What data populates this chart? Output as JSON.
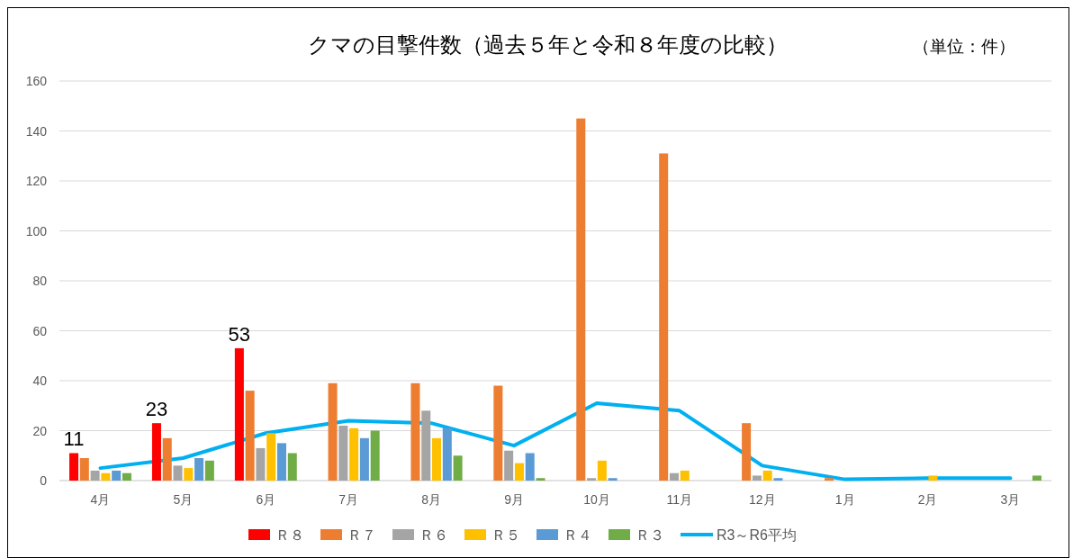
{
  "chart_data": {
    "type": "bar",
    "title": "クマの目撃件数（過去５年と令和８年度の比較）",
    "annotations": [
      "（単位：件）"
    ],
    "categories": [
      "4月",
      "5月",
      "6月",
      "7月",
      "8月",
      "9月",
      "10月",
      "11月",
      "12月",
      "1月",
      "2月",
      "3月"
    ],
    "series": [
      {
        "name": "Ｒ８",
        "color": "#ff0000",
        "values": [
          11,
          23,
          53,
          null,
          null,
          null,
          null,
          null,
          null,
          null,
          null,
          null
        ],
        "value_labels": [
          "11",
          "23",
          "53",
          null,
          null,
          null,
          null,
          null,
          null,
          null,
          null,
          null
        ]
      },
      {
        "name": "Ｒ７",
        "color": "#ed7d31",
        "values": [
          9,
          17,
          36,
          39,
          39,
          38,
          145,
          131,
          23,
          1,
          0,
          0
        ]
      },
      {
        "name": "Ｒ６",
        "color": "#a5a5a5",
        "values": [
          4,
          6,
          13,
          22,
          28,
          12,
          1,
          3,
          2,
          0,
          0,
          0
        ]
      },
      {
        "name": "Ｒ５",
        "color": "#ffc000",
        "values": [
          3,
          5,
          19,
          21,
          17,
          7,
          8,
          4,
          4,
          0,
          2,
          0
        ]
      },
      {
        "name": "Ｒ４",
        "color": "#5b9bd5",
        "values": [
          4,
          9,
          15,
          17,
          21,
          11,
          1,
          0,
          1,
          0,
          0,
          0
        ]
      },
      {
        "name": "Ｒ３",
        "color": "#70ad47",
        "values": [
          3,
          8,
          11,
          20,
          10,
          1,
          0,
          0,
          0,
          0,
          0,
          2
        ]
      },
      {
        "name": "R3～R6平均",
        "type": "line",
        "color": "#00b0f0",
        "values": [
          5,
          9,
          19,
          24,
          23,
          14,
          31,
          28,
          6,
          0.5,
          1,
          1
        ]
      }
    ],
    "ylim": [
      0,
      160
    ],
    "yticks": [
      0,
      20,
      40,
      60,
      80,
      100,
      120,
      140,
      160
    ],
    "grid": "y",
    "legend": "bottom"
  }
}
